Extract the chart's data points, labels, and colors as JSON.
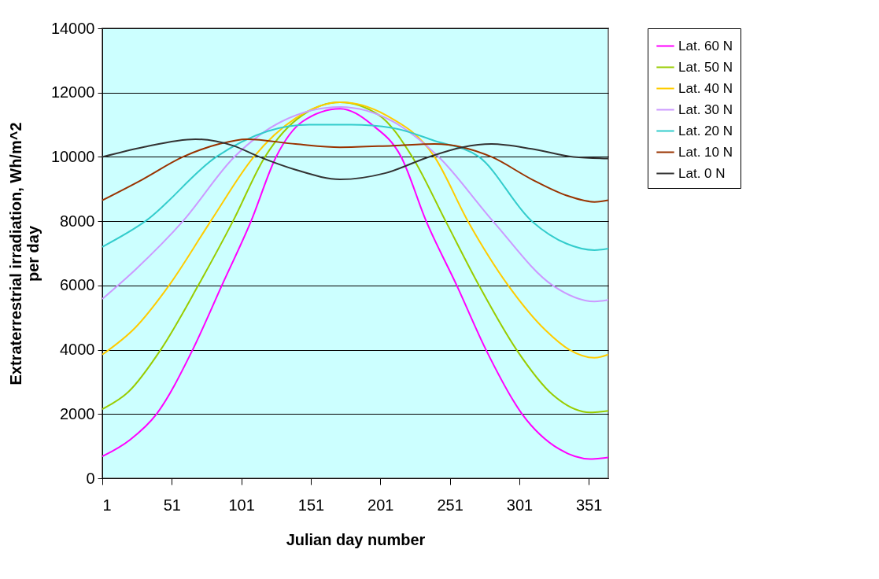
{
  "chart_data": {
    "type": "line",
    "xlabel": "Julian day number",
    "ylabel": "Extraterrestrial irradiation, Wh/m^2 per day",
    "xlim": [
      1,
      365
    ],
    "xticks": [
      1,
      51,
      101,
      151,
      201,
      251,
      301,
      351
    ],
    "ylim": [
      0,
      14000
    ],
    "yticks": [
      0,
      2000,
      4000,
      6000,
      8000,
      10000,
      12000,
      14000
    ],
    "grid": "y",
    "legend": "right",
    "marker": "none",
    "line_style": "solid",
    "series": [
      {
        "name": "Lat. 60 N",
        "color": "#ff00ff",
        "x": [
          1,
          21,
          40,
          66,
          87,
          108,
          126,
          145,
          172,
          195,
          216,
          234,
          256,
          277,
          303,
          330,
          352,
          365
        ],
        "values": [
          680,
          1200,
          2000,
          4000,
          6000,
          8000,
          10000,
          11100,
          11500,
          11000,
          10000,
          8000,
          6000,
          4000,
          2000,
          900,
          600,
          650
        ]
      },
      {
        "name": "Lat. 50 N",
        "color": "#99cc00",
        "x": [
          1,
          20,
          43,
          70,
          95,
          118,
          145,
          172,
          200,
          224,
          248,
          272,
          299,
          325,
          352,
          365
        ],
        "values": [
          2150,
          2700,
          4000,
          6000,
          8000,
          10000,
          11300,
          11700,
          11300,
          10000,
          8000,
          6000,
          4000,
          2600,
          2050,
          2100
        ]
      },
      {
        "name": "Lat. 40 N",
        "color": "#ffcc00",
        "x": [
          1,
          25,
          49,
          79,
          110,
          140,
          172,
          205,
          240,
          264,
          293,
          320,
          337,
          355,
          365
        ],
        "values": [
          3850,
          4700,
          6000,
          8000,
          10000,
          11200,
          11700,
          11300,
          10000,
          8000,
          6000,
          4600,
          4000,
          3750,
          3850
        ]
      },
      {
        "name": "Lat. 30 N",
        "color": "#cc99ff",
        "x": [
          1,
          25,
          59,
          96,
          130,
          172,
          210,
          243,
          282,
          325,
          355,
          365
        ],
        "values": [
          5580,
          6500,
          8000,
          10000,
          11100,
          11550,
          11100,
          10000,
          8000,
          6000,
          5500,
          5550
        ]
      },
      {
        "name": "Lat. 20 N",
        "color": "#33cccc",
        "x": [
          1,
          32,
          83,
          120,
          150,
          180,
          210,
          240,
          272,
          310,
          335,
          355,
          365
        ],
        "values": [
          7200,
          8000,
          10000,
          10800,
          11000,
          11000,
          10900,
          10500,
          10000,
          8000,
          7300,
          7100,
          7150
        ]
      },
      {
        "name": "Lat. 10 N",
        "color": "#993300",
        "x": [
          1,
          30,
          59,
          85,
          105,
          140,
          172,
          210,
          240,
          260,
          281,
          310,
          335,
          355,
          365
        ],
        "values": [
          8650,
          9300,
          10000,
          10400,
          10550,
          10400,
          10300,
          10350,
          10400,
          10300,
          10000,
          9300,
          8800,
          8600,
          8650
        ]
      },
      {
        "name": "Lat. 0 N",
        "color": "#333333",
        "x": [
          1,
          30,
          68,
          95,
          114,
          140,
          172,
          205,
          236,
          260,
          281,
          310,
          340,
          365
        ],
        "values": [
          10000,
          10300,
          10550,
          10350,
          10000,
          9600,
          9300,
          9500,
          10000,
          10300,
          10400,
          10250,
          10000,
          9950
        ]
      }
    ]
  }
}
